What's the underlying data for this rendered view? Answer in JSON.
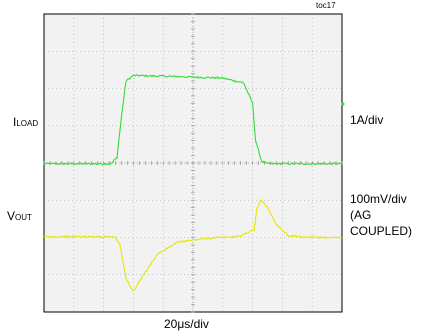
{
  "chart_data": {
    "type": "line",
    "tag": "toc17",
    "xlabel": "20μs/div",
    "channels": {
      "load": {
        "label_main": "I",
        "label_sub": "LOAD",
        "scale": "1A/div",
        "color": "#33dd33"
      },
      "out": {
        "label_main": "V",
        "label_sub": "OUT",
        "scale_lines": [
          "100mV/div",
          "(AG",
          "COUPLED)"
        ],
        "color": "#e6e600"
      }
    },
    "grid": true,
    "grid_divisions": {
      "x": 10,
      "y": 8
    },
    "xlim": [
      0,
      10
    ],
    "ylim": [
      0,
      8
    ],
    "series": [
      {
        "channel": "load",
        "x": [
          0,
          2.25,
          2.45,
          2.6,
          2.75,
          3.0,
          4.5,
          6.0,
          6.7,
          7.0,
          7.1,
          7.3,
          7.5,
          10
        ],
        "y": [
          3.98,
          3.98,
          4.15,
          5.25,
          6.2,
          6.35,
          6.32,
          6.28,
          6.15,
          5.6,
          4.6,
          4.05,
          3.98,
          3.98
        ]
      },
      {
        "channel": "out",
        "x": [
          0,
          2.4,
          2.55,
          2.75,
          3.0,
          3.3,
          3.8,
          4.5,
          5.5,
          6.5,
          7.05,
          7.15,
          7.3,
          7.5,
          7.8,
          8.2,
          8.7,
          10
        ],
        "y": [
          2.02,
          2.02,
          1.8,
          0.9,
          0.55,
          0.95,
          1.55,
          1.88,
          1.98,
          2.02,
          2.2,
          2.8,
          3.02,
          2.8,
          2.35,
          2.05,
          2.0,
          2.0
        ]
      }
    ]
  }
}
